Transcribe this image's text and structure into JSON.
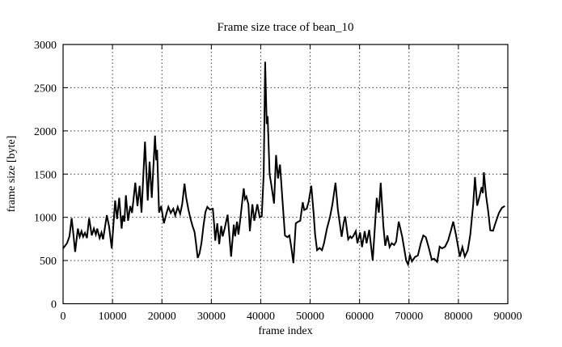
{
  "title": "Frame size trace of bean_10",
  "chart_data": {
    "type": "line",
    "title": "Frame size trace of bean_10",
    "xlabel": "frame index",
    "ylabel": "frame size [byte]",
    "xlim": [
      0,
      90000
    ],
    "ylim": [
      0,
      3000
    ],
    "xticks": [
      0,
      10000,
      20000,
      30000,
      40000,
      50000,
      60000,
      70000,
      80000,
      90000
    ],
    "yticks": [
      0,
      500,
      1000,
      1500,
      2000,
      2500,
      3000
    ],
    "grid": true,
    "grid_style": "dotted",
    "legend": "none",
    "line_color": "#000000",
    "background_color": "#ffffff",
    "series": [
      {
        "name": "frame size",
        "points": [
          [
            0,
            640
          ],
          [
            800,
            700
          ],
          [
            1300,
            780
          ],
          [
            1730,
            990
          ],
          [
            2100,
            800
          ],
          [
            2440,
            600
          ],
          [
            3000,
            870
          ],
          [
            3350,
            775
          ],
          [
            3730,
            840
          ],
          [
            4060,
            775
          ],
          [
            4440,
            820
          ],
          [
            4820,
            760
          ],
          [
            5270,
            990
          ],
          [
            5810,
            790
          ],
          [
            6240,
            870
          ],
          [
            6620,
            800
          ],
          [
            6900,
            870
          ],
          [
            7400,
            760
          ],
          [
            7770,
            825
          ],
          [
            8100,
            745
          ],
          [
            8860,
            1025
          ],
          [
            9300,
            900
          ],
          [
            9850,
            640
          ],
          [
            10540,
            1195
          ],
          [
            10930,
            980
          ],
          [
            11360,
            1225
          ],
          [
            11840,
            870
          ],
          [
            12100,
            1020
          ],
          [
            12400,
            950
          ],
          [
            12720,
            1255
          ],
          [
            13150,
            960
          ],
          [
            13600,
            1130
          ],
          [
            13950,
            1050
          ],
          [
            14620,
            1400
          ],
          [
            15060,
            1130
          ],
          [
            15500,
            1365
          ],
          [
            15870,
            1055
          ],
          [
            16580,
            1875
          ],
          [
            17130,
            1195
          ],
          [
            17510,
            1645
          ],
          [
            17950,
            1225
          ],
          [
            18600,
            1945
          ],
          [
            18850,
            1660
          ],
          [
            19030,
            1780
          ],
          [
            19420,
            1055
          ],
          [
            19850,
            1130
          ],
          [
            20400,
            930
          ],
          [
            21000,
            1060
          ],
          [
            21300,
            1120
          ],
          [
            21800,
            1050
          ],
          [
            22300,
            1100
          ],
          [
            22700,
            1020
          ],
          [
            23200,
            1120
          ],
          [
            23700,
            1040
          ],
          [
            24100,
            1150
          ],
          [
            24580,
            1390
          ],
          [
            24900,
            1230
          ],
          [
            25400,
            1080
          ],
          [
            25800,
            980
          ],
          [
            26200,
            900
          ],
          [
            26600,
            830
          ],
          [
            26900,
            700
          ],
          [
            27250,
            530
          ],
          [
            27600,
            580
          ],
          [
            28000,
            700
          ],
          [
            28400,
            900
          ],
          [
            28800,
            1060
          ],
          [
            29200,
            1120
          ],
          [
            29700,
            1090
          ],
          [
            30300,
            1100
          ],
          [
            30600,
            900
          ],
          [
            30800,
            730
          ],
          [
            31200,
            930
          ],
          [
            31600,
            690
          ],
          [
            32000,
            900
          ],
          [
            32300,
            780
          ],
          [
            32700,
            870
          ],
          [
            33300,
            1030
          ],
          [
            34000,
            545
          ],
          [
            34550,
            915
          ],
          [
            34800,
            780
          ],
          [
            35200,
            950
          ],
          [
            35500,
            800
          ],
          [
            35900,
            1000
          ],
          [
            36550,
            1335
          ],
          [
            36800,
            1210
          ],
          [
            37100,
            1240
          ],
          [
            37500,
            1150
          ],
          [
            37800,
            840
          ],
          [
            38300,
            1150
          ],
          [
            38700,
            960
          ],
          [
            39300,
            1150
          ],
          [
            39800,
            1000
          ],
          [
            40200,
            1010
          ],
          [
            40600,
            1500
          ],
          [
            40900,
            2800
          ],
          [
            41200,
            2080
          ],
          [
            41400,
            2170
          ],
          [
            41800,
            1500
          ],
          [
            42100,
            1390
          ],
          [
            42700,
            1160
          ],
          [
            43100,
            1720
          ],
          [
            43500,
            1450
          ],
          [
            43900,
            1610
          ],
          [
            44400,
            1200
          ],
          [
            44900,
            790
          ],
          [
            45400,
            770
          ],
          [
            45800,
            790
          ],
          [
            46200,
            650
          ],
          [
            46600,
            470
          ],
          [
            47100,
            930
          ],
          [
            47600,
            950
          ],
          [
            48000,
            960
          ],
          [
            48500,
            1175
          ],
          [
            48800,
            1085
          ],
          [
            49300,
            1100
          ],
          [
            49700,
            1180
          ],
          [
            50240,
            1365
          ],
          [
            50700,
            1050
          ],
          [
            51000,
            800
          ],
          [
            51400,
            620
          ],
          [
            51900,
            645
          ],
          [
            52400,
            620
          ],
          [
            52800,
            700
          ],
          [
            53400,
            870
          ],
          [
            54000,
            1000
          ],
          [
            54500,
            1150
          ],
          [
            55130,
            1400
          ],
          [
            55600,
            1090
          ],
          [
            56380,
            775
          ],
          [
            56800,
            940
          ],
          [
            57100,
            1010
          ],
          [
            57700,
            745
          ],
          [
            58100,
            780
          ],
          [
            58400,
            760
          ],
          [
            58700,
            780
          ],
          [
            59230,
            840
          ],
          [
            59560,
            700
          ],
          [
            60100,
            825
          ],
          [
            60490,
            655
          ],
          [
            61030,
            840
          ],
          [
            61410,
            700
          ],
          [
            61950,
            855
          ],
          [
            62650,
            500
          ],
          [
            63000,
            800
          ],
          [
            63470,
            1225
          ],
          [
            63900,
            1055
          ],
          [
            64280,
            1400
          ],
          [
            64820,
            900
          ],
          [
            65200,
            670
          ],
          [
            65630,
            790
          ],
          [
            66070,
            655
          ],
          [
            66500,
            700
          ],
          [
            67000,
            680
          ],
          [
            67400,
            720
          ],
          [
            67920,
            950
          ],
          [
            68620,
            780
          ],
          [
            69430,
            500
          ],
          [
            69800,
            455
          ],
          [
            70200,
            560
          ],
          [
            70600,
            490
          ],
          [
            71200,
            540
          ],
          [
            71800,
            560
          ],
          [
            72400,
            700
          ],
          [
            72900,
            790
          ],
          [
            73400,
            770
          ],
          [
            74000,
            650
          ],
          [
            74600,
            510
          ],
          [
            75100,
            520
          ],
          [
            75700,
            485
          ],
          [
            76200,
            660
          ],
          [
            76700,
            640
          ],
          [
            77300,
            660
          ],
          [
            77900,
            730
          ],
          [
            78500,
            850
          ],
          [
            78950,
            950
          ],
          [
            79500,
            800
          ],
          [
            80300,
            545
          ],
          [
            80800,
            655
          ],
          [
            81300,
            545
          ],
          [
            81900,
            620
          ],
          [
            82400,
            800
          ],
          [
            83000,
            1150
          ],
          [
            83350,
            1465
          ],
          [
            83800,
            1135
          ],
          [
            84300,
            1250
          ],
          [
            84700,
            1350
          ],
          [
            84950,
            1280
          ],
          [
            85150,
            1520
          ],
          [
            85600,
            1250
          ],
          [
            86000,
            1080
          ],
          [
            86450,
            850
          ],
          [
            87000,
            845
          ],
          [
            87600,
            950
          ],
          [
            88200,
            1050
          ],
          [
            88800,
            1110
          ],
          [
            89400,
            1130
          ]
        ]
      }
    ]
  }
}
